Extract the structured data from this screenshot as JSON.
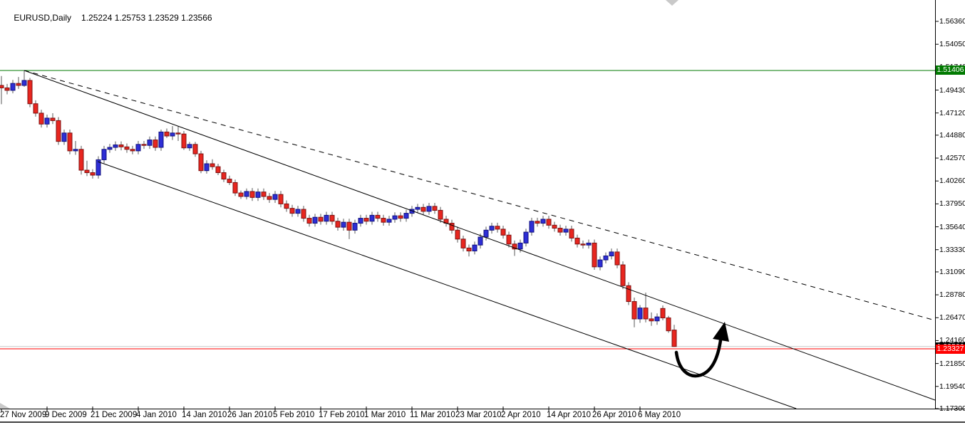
{
  "header": {
    "title": "EURUSD,Daily",
    "ohlc": "1.25224 1.25753 1.23529 1.23566"
  },
  "chart_data": {
    "type": "candlestick",
    "symbol": "EURUSD",
    "timeframe": "Daily",
    "last_bar": {
      "open": 1.25224,
      "high": 1.25753,
      "low": 1.23529,
      "close": 1.23566
    },
    "y_axis": {
      "tick_labels": [
        "1.56360",
        "1.54050",
        "1.51740",
        "1.49430",
        "1.47120",
        "1.44880",
        "1.42570",
        "1.40260",
        "1.37950",
        "1.35640",
        "1.33330",
        "1.31090",
        "1.28780",
        "1.26470",
        "1.24160",
        "1.21850",
        "1.19540",
        "1.17300"
      ],
      "top_price": 1.5636,
      "bottom_price": 1.173,
      "grid": "off"
    },
    "x_axis": {
      "tick_labels": [
        "27 Nov 2009",
        "9 Dec 2009",
        "21 Dec 2009",
        "4 Jan 2010",
        "14 Jan 2010",
        "26 Jan 2010",
        "5 Feb 2010",
        "17 Feb 2010",
        "1 Mar 2010",
        "11 Mar 2010",
        "23 Mar 2010",
        "2 Apr 2010",
        "14 Apr 2010",
        "26 Apr 2010",
        "6 May 2010"
      ],
      "bars_per_tick": 8
    },
    "price_tags": {
      "resistance": {
        "value": "1.51406",
        "color": "#007A00"
      },
      "bid": {
        "value": "1.23566",
        "color": "#000000"
      },
      "support": {
        "value": "1.23327",
        "color": "#FF0000"
      }
    },
    "horizontal_lines": [
      {
        "name": "resistance-hline",
        "price": 1.51406,
        "color": "#007A00",
        "style": "solid"
      },
      {
        "name": "bid-price-line",
        "price": 1.23566,
        "color": "#C8C8C8",
        "style": "solid"
      },
      {
        "name": "support-hline",
        "price": 1.23327,
        "color": "#FF0000",
        "style": "solid"
      }
    ],
    "trendlines": [
      {
        "name": "channel-top-dashed",
        "style": "dashed",
        "i1": 4,
        "p1": 1.51406,
        "i2": 163.75,
        "p2": 1.26202
      },
      {
        "name": "channel-median",
        "style": "solid",
        "i1": 4,
        "p1": 1.51406,
        "i2": 163.75,
        "p2": 1.18162
      },
      {
        "name": "channel-bottom",
        "style": "solid",
        "i1": 16.9,
        "p1": 1.42215,
        "i2": 139.4,
        "p2": 1.173
      }
    ],
    "annotations": [
      {
        "name": "up-arrow",
        "description": "hand-drawn curved black arrow pointing up toward the channel median line",
        "color": "#000000"
      }
    ],
    "colors": {
      "bull": "#2E2ED6",
      "bear": "#E8261F",
      "bull_border": "#10107E",
      "bear_border": "#7E1010",
      "wick": "#5A5A5A",
      "background": "#FFFFFF",
      "axis": "#000000"
    },
    "candles": [
      [
        1.499,
        1.5085,
        1.48,
        1.4965
      ],
      [
        1.4965,
        1.5005,
        1.49,
        1.494
      ],
      [
        1.494,
        1.5045,
        1.491,
        1.501
      ],
      [
        1.501,
        1.5075,
        1.4955,
        1.499
      ],
      [
        1.499,
        1.51406,
        1.4975,
        1.504
      ],
      [
        1.504,
        1.5065,
        1.477,
        1.4805
      ],
      [
        1.4805,
        1.484,
        1.4675,
        1.471
      ],
      [
        1.471,
        1.4745,
        1.4565,
        1.46
      ],
      [
        1.46,
        1.4695,
        1.4565,
        1.466
      ],
      [
        1.466,
        1.471,
        1.46,
        1.4635
      ],
      [
        1.4635,
        1.467,
        1.439,
        1.4425
      ],
      [
        1.4425,
        1.4545,
        1.439,
        1.451
      ],
      [
        1.451,
        1.4545,
        1.4295,
        1.433
      ],
      [
        1.433,
        1.443,
        1.429,
        1.4345
      ],
      [
        1.4345,
        1.438,
        1.409,
        1.4135
      ],
      [
        1.4135,
        1.423,
        1.4075,
        1.411
      ],
      [
        1.411,
        1.4145,
        1.405,
        1.4085
      ],
      [
        1.4085,
        1.4275,
        1.405,
        1.424
      ],
      [
        1.424,
        1.438,
        1.4205,
        1.4345
      ],
      [
        1.4345,
        1.44,
        1.431,
        1.4365
      ],
      [
        1.4365,
        1.4425,
        1.433,
        1.439
      ],
      [
        1.439,
        1.4425,
        1.4335,
        1.437
      ],
      [
        1.437,
        1.4405,
        1.431,
        1.4345
      ],
      [
        1.4345,
        1.438,
        1.4295,
        1.433
      ],
      [
        1.433,
        1.443,
        1.4295,
        1.4395
      ],
      [
        1.4395,
        1.443,
        1.435,
        1.4385
      ],
      [
        1.4385,
        1.4475,
        1.435,
        1.444
      ],
      [
        1.444,
        1.4475,
        1.433,
        1.4365
      ],
      [
        1.4365,
        1.4545,
        1.433,
        1.452
      ],
      [
        1.452,
        1.4555,
        1.446,
        1.448
      ],
      [
        1.448,
        1.458,
        1.444,
        1.451
      ],
      [
        1.451,
        1.4575,
        1.443,
        1.45
      ],
      [
        1.45,
        1.453,
        1.434,
        1.436
      ],
      [
        1.436,
        1.442,
        1.433,
        1.4395
      ],
      [
        1.4395,
        1.442,
        1.427,
        1.43
      ],
      [
        1.43,
        1.433,
        1.4105,
        1.413
      ],
      [
        1.413,
        1.4235,
        1.41,
        1.42
      ],
      [
        1.42,
        1.4245,
        1.414,
        1.417
      ],
      [
        1.417,
        1.42,
        1.4085,
        1.411
      ],
      [
        1.411,
        1.414,
        1.4015,
        1.4045
      ],
      [
        1.4045,
        1.408,
        1.3985,
        1.401
      ],
      [
        1.401,
        1.404,
        1.3875,
        1.3905
      ],
      [
        1.3905,
        1.393,
        1.3845,
        1.387
      ],
      [
        1.387,
        1.395,
        1.384,
        1.392
      ],
      [
        1.392,
        1.3955,
        1.3825,
        1.386
      ],
      [
        1.386,
        1.395,
        1.3825,
        1.3915
      ],
      [
        1.3915,
        1.395,
        1.3835,
        1.387
      ],
      [
        1.387,
        1.3905,
        1.3805,
        1.384
      ],
      [
        1.384,
        1.3925,
        1.3805,
        1.389
      ],
      [
        1.389,
        1.3925,
        1.376,
        1.3795
      ],
      [
        1.3795,
        1.383,
        1.3715,
        1.375
      ],
      [
        1.375,
        1.3785,
        1.3665,
        1.37
      ],
      [
        1.37,
        1.3775,
        1.3665,
        1.374
      ],
      [
        1.374,
        1.3775,
        1.3615,
        1.365
      ],
      [
        1.365,
        1.3685,
        1.3565,
        1.36
      ],
      [
        1.36,
        1.3695,
        1.3565,
        1.366
      ],
      [
        1.366,
        1.3695,
        1.3585,
        1.362
      ],
      [
        1.362,
        1.3715,
        1.3585,
        1.368
      ],
      [
        1.368,
        1.3715,
        1.3585,
        1.362
      ],
      [
        1.362,
        1.3655,
        1.3525,
        1.356
      ],
      [
        1.356,
        1.3645,
        1.3525,
        1.361
      ],
      [
        1.361,
        1.3645,
        1.344,
        1.353
      ],
      [
        1.353,
        1.3635,
        1.3495,
        1.36
      ],
      [
        1.36,
        1.3685,
        1.3565,
        1.365
      ],
      [
        1.365,
        1.3685,
        1.3585,
        1.362
      ],
      [
        1.362,
        1.3715,
        1.3585,
        1.368
      ],
      [
        1.368,
        1.3715,
        1.3615,
        1.365
      ],
      [
        1.365,
        1.3685,
        1.3575,
        1.361
      ],
      [
        1.361,
        1.3675,
        1.3575,
        1.364
      ],
      [
        1.364,
        1.371,
        1.3605,
        1.3675
      ],
      [
        1.3675,
        1.371,
        1.3615,
        1.365
      ],
      [
        1.365,
        1.3735,
        1.3615,
        1.37
      ],
      [
        1.37,
        1.3775,
        1.3665,
        1.374
      ],
      [
        1.374,
        1.3795,
        1.3705,
        1.376
      ],
      [
        1.376,
        1.3795,
        1.3685,
        1.372
      ],
      [
        1.372,
        1.3805,
        1.3685,
        1.377
      ],
      [
        1.377,
        1.3805,
        1.3695,
        1.373
      ],
      [
        1.373,
        1.3765,
        1.3605,
        1.364
      ],
      [
        1.364,
        1.3675,
        1.3565,
        1.36
      ],
      [
        1.36,
        1.3635,
        1.3495,
        1.353
      ],
      [
        1.353,
        1.3565,
        1.3405,
        1.344
      ],
      [
        1.344,
        1.3475,
        1.3315,
        1.335
      ],
      [
        1.335,
        1.3385,
        1.3265,
        1.332
      ],
      [
        1.332,
        1.3415,
        1.3285,
        1.338
      ],
      [
        1.338,
        1.3495,
        1.3345,
        1.346
      ],
      [
        1.346,
        1.3565,
        1.3425,
        1.353
      ],
      [
        1.353,
        1.3605,
        1.3495,
        1.357
      ],
      [
        1.357,
        1.3605,
        1.3505,
        1.354
      ],
      [
        1.354,
        1.3575,
        1.3445,
        1.348
      ],
      [
        1.348,
        1.3515,
        1.3355,
        1.339
      ],
      [
        1.339,
        1.3425,
        1.327,
        1.334
      ],
      [
        1.334,
        1.3435,
        1.3305,
        1.34
      ],
      [
        1.34,
        1.3545,
        1.3365,
        1.351
      ],
      [
        1.351,
        1.3655,
        1.3475,
        1.362
      ],
      [
        1.362,
        1.3655,
        1.3565,
        1.36
      ],
      [
        1.36,
        1.3675,
        1.3565,
        1.364
      ],
      [
        1.364,
        1.3675,
        1.3545,
        1.358
      ],
      [
        1.358,
        1.3615,
        1.3515,
        1.355
      ],
      [
        1.355,
        1.3585,
        1.3475,
        1.351
      ],
      [
        1.351,
        1.3575,
        1.3475,
        1.354
      ],
      [
        1.354,
        1.3575,
        1.3415,
        1.345
      ],
      [
        1.345,
        1.3485,
        1.3355,
        1.339
      ],
      [
        1.339,
        1.3425,
        1.3345,
        1.338
      ],
      [
        1.338,
        1.3435,
        1.3345,
        1.34
      ],
      [
        1.34,
        1.3435,
        1.313,
        1.316
      ],
      [
        1.316,
        1.3265,
        1.3125,
        1.323
      ],
      [
        1.323,
        1.3305,
        1.3195,
        1.327
      ],
      [
        1.327,
        1.3345,
        1.3235,
        1.331
      ],
      [
        1.331,
        1.3345,
        1.3145,
        1.318
      ],
      [
        1.318,
        1.3215,
        1.2935,
        1.297
      ],
      [
        1.297,
        1.3005,
        1.2775,
        1.281
      ],
      [
        1.281,
        1.285,
        1.255,
        1.2635
      ],
      [
        1.2635,
        1.2775,
        1.2595,
        1.2745
      ],
      [
        1.2745,
        1.29,
        1.26,
        1.2635
      ],
      [
        1.2635,
        1.27,
        1.2565,
        1.2615
      ],
      [
        1.2615,
        1.269,
        1.2575,
        1.2655
      ],
      [
        1.274,
        1.277,
        1.262,
        1.2645
      ],
      [
        1.2645,
        1.2665,
        1.2495,
        1.2515
      ],
      [
        1.25224,
        1.25753,
        1.23529,
        1.23566
      ]
    ]
  }
}
